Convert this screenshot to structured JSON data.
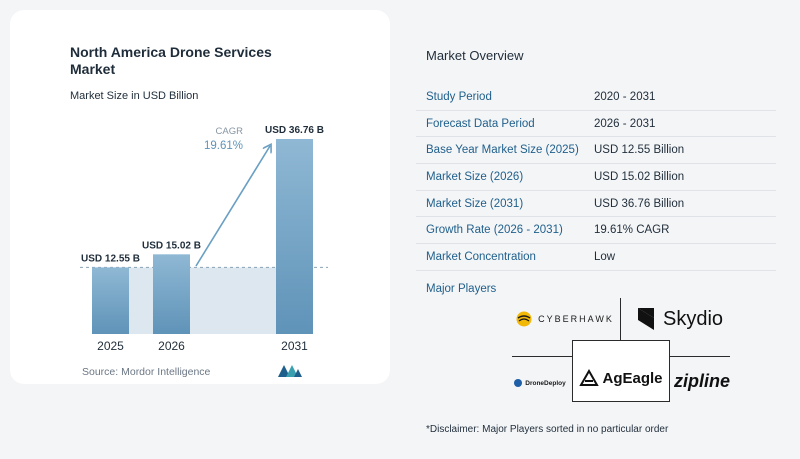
{
  "chart_data": {
    "type": "bar",
    "title": "North America Drone Services Market",
    "subtitle": "Market Size in USD Billion",
    "categories": [
      "2025",
      "2026",
      "2031"
    ],
    "values": [
      12.55,
      15.02,
      36.76
    ],
    "data_labels": [
      "USD 12.55 B",
      "USD 15.02 B",
      "USD 36.76 B"
    ],
    "annotation": {
      "label": "CAGR",
      "value": "19.61%"
    },
    "ylim": [
      0,
      36.76
    ],
    "colors": {
      "bar": "#6a9fc4",
      "bar_top": "#8fb8d4",
      "shade": "#dde7f0",
      "dashed": "#8aa3b5",
      "arrow": "#6a9fc4"
    }
  },
  "source": "Source:  Mordor Intelligence",
  "overview": {
    "title": "Market Overview",
    "rows": [
      {
        "key": "Study Period",
        "value": "2020 - 2031"
      },
      {
        "key": "Forecast Data Period",
        "value": "2026 - 2031"
      },
      {
        "key": "Base Year Market Size (2025)",
        "value": "USD 12.55 Billion"
      },
      {
        "key": "Market Size (2026)",
        "value": "USD 15.02 Billion"
      },
      {
        "key": "Market Size (2031)",
        "value": "USD 36.76 Billion"
      },
      {
        "key": "Growth Rate (2026 - 2031)",
        "value": "19.61% CAGR"
      },
      {
        "key": "Market Concentration",
        "value": "Low"
      }
    ]
  },
  "players": {
    "title": "Major Players",
    "logos": [
      "CYBERHAWK",
      "Skydio",
      "DroneDeploy",
      "AgEagle",
      "zipline"
    ]
  },
  "disclaimer": "*Disclaimer: Major Players sorted in no particular order"
}
